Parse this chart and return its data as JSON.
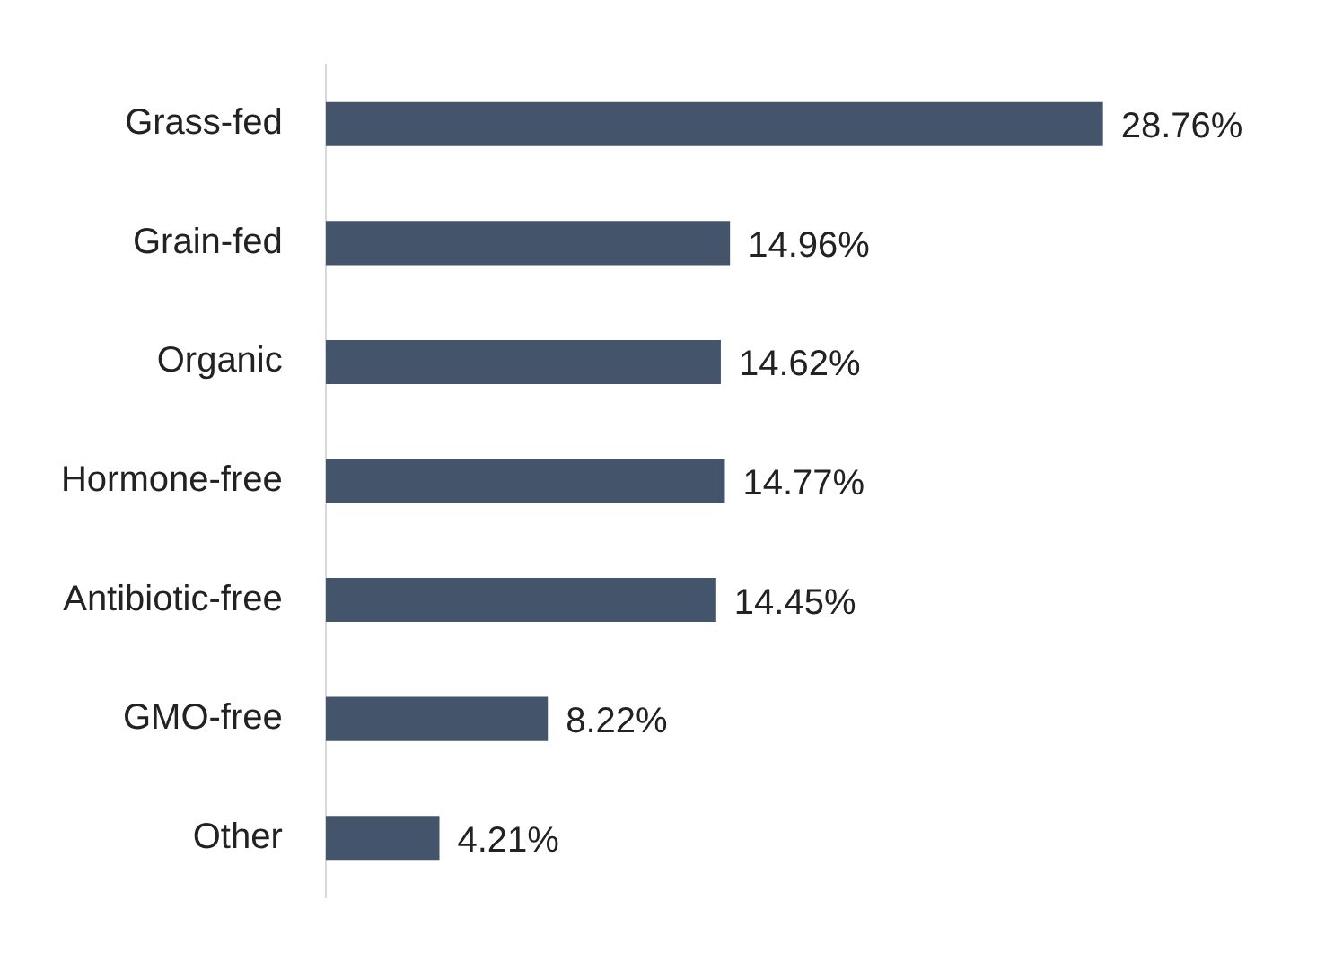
{
  "chart_data": {
    "type": "bar",
    "orientation": "horizontal",
    "categories": [
      "Grass-fed",
      "Grain-fed",
      "Organic",
      "Hormone-free",
      "Antibiotic-free",
      "GMO-free",
      "Other"
    ],
    "values": [
      28.76,
      14.96,
      14.62,
      14.77,
      14.45,
      8.22,
      4.21
    ],
    "value_labels": [
      "28.76%",
      "14.96%",
      "14.62%",
      "14.77%",
      "14.45%",
      "8.22%",
      "4.21%"
    ],
    "color": "#44546a",
    "grid": false,
    "legend": false,
    "tick_labels": "y"
  }
}
